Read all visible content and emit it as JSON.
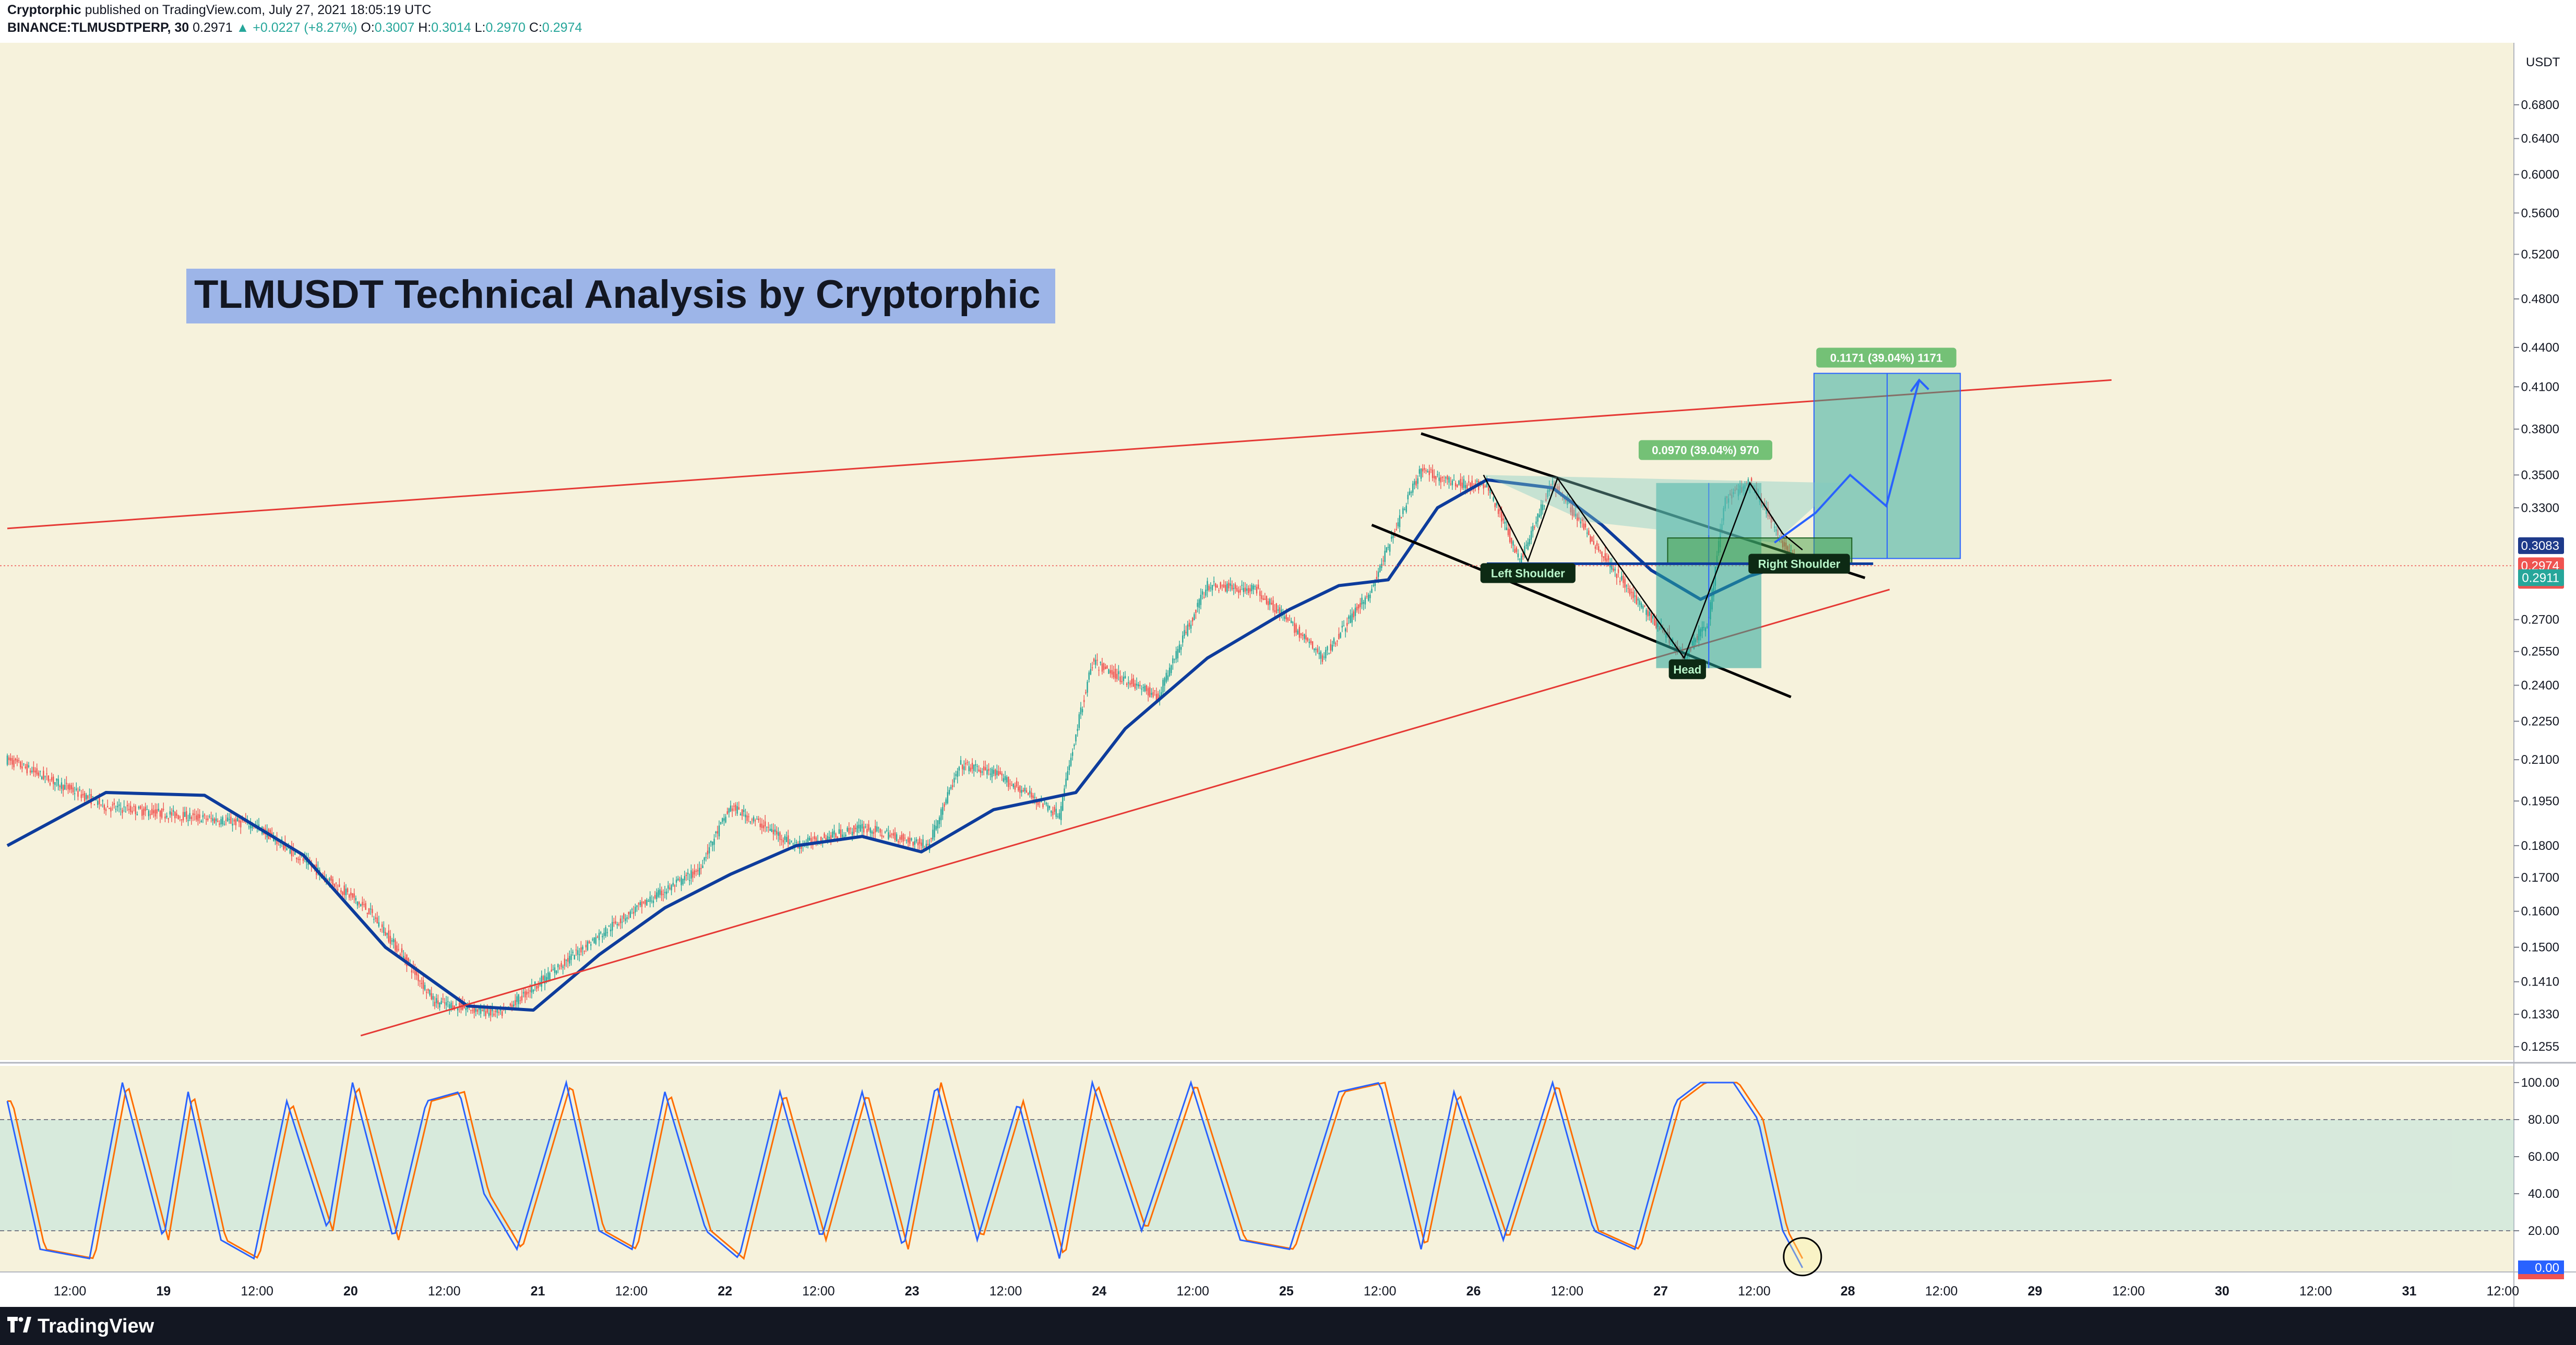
{
  "header": {
    "author": "Cryptorphic",
    "published": "published on TradingView.com, July 27, 2021 18:05:19 UTC",
    "symbol_line": "BINANCE:TLMUSDTPERP, 30",
    "last": "0.2971",
    "change": "+0.0227 (+8.27%)",
    "o_label": "O:",
    "o_value": "0.3007",
    "h_label": "H:",
    "h_value": "0.3014",
    "l_label": "L:",
    "l_value": "0.2970",
    "c_label": "C:",
    "c_value": "0.2974"
  },
  "brand": "TradingView",
  "colors": {
    "background": "#f6f2dc",
    "up": "#26a69a",
    "down": "#ef5350",
    "ma": "#0d3c9c",
    "trend": "#e53935",
    "pattern": "#000000",
    "stoch_k": "#2962ff",
    "stoch_d": "#ff6d00"
  },
  "chart_data": [
    {
      "type": "candlestick",
      "title": "TLMUSDT Technical Analysis by Cryptorphic",
      "currency": "USDT",
      "yscale": "log",
      "ylim": [
        0.1225,
        0.76
      ],
      "y_ticks": [
        "0.6800",
        "0.6400",
        "0.6000",
        "0.5600",
        "0.5200",
        "0.4800",
        "0.4400",
        "0.4100",
        "0.3800",
        "0.3500",
        "0.3300",
        "0.3083",
        "0.2974",
        "0.2911",
        "0.2700",
        "0.2550",
        "0.2400",
        "0.2250",
        "0.2100",
        "0.1950",
        "0.1800",
        "0.1700",
        "0.1600",
        "0.1500",
        "0.1410",
        "0.1330",
        "0.1255"
      ],
      "x_ticks": [
        "12:00",
        "19",
        "12:00",
        "20",
        "12:00",
        "21",
        "12:00",
        "22",
        "12:00",
        "23",
        "12:00",
        "24",
        "12:00",
        "25",
        "12:00",
        "26",
        "12:00",
        "27",
        "12:00",
        "28",
        "12:00",
        "29",
        "12:00",
        "30",
        "12:00",
        "31",
        "12:00"
      ],
      "ohlc_keypoints": [
        [
          0,
          0.21
        ],
        [
          60,
          0.193
        ],
        [
          150,
          0.187
        ],
        [
          220,
          0.16
        ],
        [
          260,
          0.136
        ],
        [
          300,
          0.133
        ],
        [
          330,
          0.143
        ],
        [
          380,
          0.16
        ],
        [
          420,
          0.172
        ],
        [
          440,
          0.193
        ],
        [
          480,
          0.18
        ],
        [
          520,
          0.186
        ],
        [
          560,
          0.18
        ],
        [
          580,
          0.208
        ],
        [
          600,
          0.205
        ],
        [
          625,
          0.196
        ],
        [
          640,
          0.19
        ],
        [
          660,
          0.25
        ],
        [
          700,
          0.235
        ],
        [
          730,
          0.287
        ],
        [
          760,
          0.285
        ],
        [
          800,
          0.252
        ],
        [
          830,
          0.285
        ],
        [
          860,
          0.353
        ],
        [
          880,
          0.345
        ],
        [
          900,
          0.343
        ],
        [
          920,
          0.3
        ],
        [
          940,
          0.345
        ],
        [
          965,
          0.31
        ],
        [
          990,
          0.28
        ],
        [
          1020,
          0.253
        ],
        [
          1035,
          0.27
        ],
        [
          1045,
          0.335
        ],
        [
          1060,
          0.345
        ],
        [
          1080,
          0.31
        ],
        [
          1090,
          0.297
        ]
      ],
      "moving_average": [
        [
          0,
          0.18
        ],
        [
          60,
          0.198
        ],
        [
          120,
          0.197
        ],
        [
          180,
          0.177
        ],
        [
          230,
          0.15
        ],
        [
          280,
          0.135
        ],
        [
          320,
          0.134
        ],
        [
          360,
          0.148
        ],
        [
          400,
          0.161
        ],
        [
          440,
          0.171
        ],
        [
          480,
          0.18
        ],
        [
          520,
          0.183
        ],
        [
          556,
          0.178
        ],
        [
          600,
          0.192
        ],
        [
          650,
          0.198
        ],
        [
          680,
          0.222
        ],
        [
          730,
          0.252
        ],
        [
          780,
          0.275
        ],
        [
          810,
          0.287
        ],
        [
          840,
          0.29
        ],
        [
          870,
          0.33
        ],
        [
          900,
          0.347
        ],
        [
          940,
          0.342
        ],
        [
          970,
          0.32
        ],
        [
          1000,
          0.295
        ],
        [
          1030,
          0.28
        ],
        [
          1060,
          0.292
        ],
        [
          1090,
          0.3
        ]
      ],
      "trendlines": [
        {
          "from": [
            0,
            0.318
          ],
          "to": [
            1280,
            0.415
          ]
        },
        {
          "from": [
            215,
            0.128
          ],
          "to": [
            1145,
            0.285
          ]
        }
      ],
      "channel_lines": [
        {
          "from": [
            860,
            0.377
          ],
          "to": [
            1130,
            0.291
          ]
        },
        {
          "from": [
            830,
            0.32
          ],
          "to": [
            1085,
            0.235
          ]
        }
      ],
      "neckline": [
        900,
        0.2985,
        1135,
        0.2985
      ],
      "annotations": [
        {
          "text": "Left Shoulder",
          "x": 925,
          "y": 0.2935
        },
        {
          "text": "Head",
          "x": 1022,
          "y": 0.247
        },
        {
          "text": "Right Shoulder",
          "x": 1090,
          "y": 0.2985
        },
        {
          "text": "0.0970 (39.04%) 970",
          "x": 1033,
          "y": 0.366
        },
        {
          "text": "0.1171 (39.04%) 1171",
          "x": 1143,
          "y": 0.432
        }
      ],
      "target_box_1": {
        "x0": 1003,
        "x1": 1067,
        "y0": 0.2475,
        "y1": 0.345
      },
      "target_box_2": {
        "x0": 1099,
        "x1": 1188,
        "y0": 0.3013,
        "y1": 0.42
      },
      "entry_zone": {
        "x0": 1010,
        "x1": 1122,
        "y0": 0.2985,
        "y1": 0.3126
      },
      "price_labels": [
        {
          "value": "0.3083",
          "color": "#1e3a8a"
        },
        {
          "value": "0.2974",
          "sub": "24:44",
          "color": "#ef5350"
        },
        {
          "value": "0.2911",
          "color": "#26a69a"
        }
      ],
      "projection_path": [
        [
          1075,
          0.31
        ],
        [
          1100,
          0.327
        ],
        [
          1121,
          0.35
        ],
        [
          1143,
          0.331
        ],
        [
          1163,
          0.415
        ]
      ]
    },
    {
      "type": "line",
      "name": "Stochastic RSI",
      "ylim": [
        0,
        100
      ],
      "y_ticks": [
        "100.00",
        "80.00",
        "60.00",
        "40.00",
        "20.00",
        "0.00"
      ],
      "band": [
        20,
        80
      ],
      "k_keypoints": [
        [
          0,
          90
        ],
        [
          20,
          10
        ],
        [
          50,
          5
        ],
        [
          70,
          100
        ],
        [
          95,
          15
        ],
        [
          110,
          95
        ],
        [
          130,
          15
        ],
        [
          150,
          5
        ],
        [
          170,
          90
        ],
        [
          195,
          20
        ],
        [
          210,
          100
        ],
        [
          235,
          15
        ],
        [
          255,
          90
        ],
        [
          275,
          95
        ],
        [
          290,
          40
        ],
        [
          310,
          10
        ],
        [
          340,
          100
        ],
        [
          360,
          20
        ],
        [
          380,
          10
        ],
        [
          400,
          95
        ],
        [
          425,
          20
        ],
        [
          445,
          5
        ],
        [
          470,
          95
        ],
        [
          495,
          15
        ],
        [
          520,
          95
        ],
        [
          545,
          10
        ],
        [
          565,
          100
        ],
        [
          590,
          15
        ],
        [
          615,
          90
        ],
        [
          640,
          5
        ],
        [
          660,
          100
        ],
        [
          690,
          20
        ],
        [
          720,
          100
        ],
        [
          750,
          15
        ],
        [
          780,
          10
        ],
        [
          810,
          95
        ],
        [
          835,
          100
        ],
        [
          860,
          10
        ],
        [
          880,
          95
        ],
        [
          910,
          15
        ],
        [
          940,
          100
        ],
        [
          965,
          20
        ],
        [
          990,
          10
        ],
        [
          1015,
          90
        ],
        [
          1030,
          100
        ],
        [
          1050,
          100
        ],
        [
          1065,
          80
        ],
        [
          1080,
          20
        ],
        [
          1092,
          0
        ]
      ],
      "last_value": "0.00"
    }
  ]
}
